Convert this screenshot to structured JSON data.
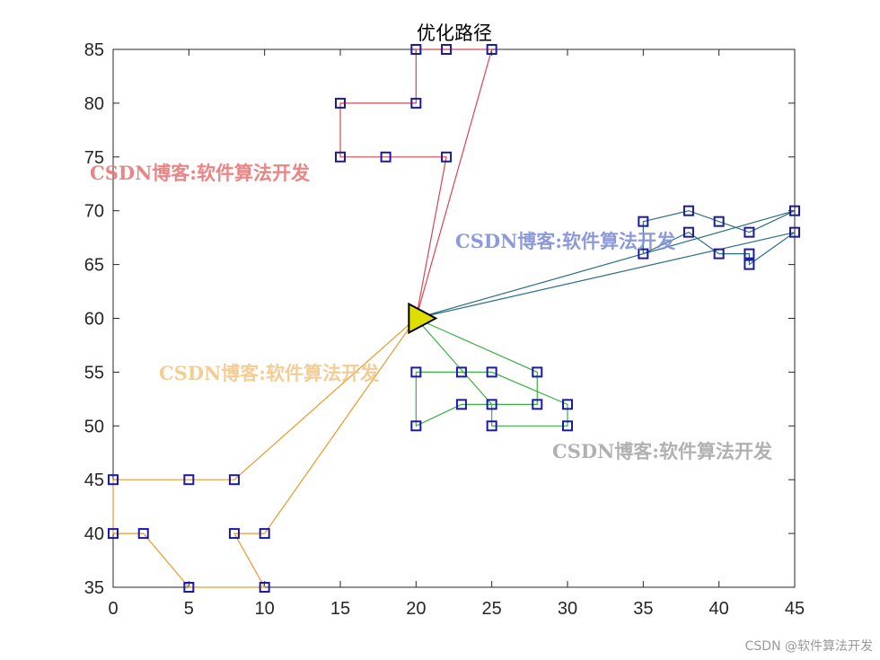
{
  "chart_data": {
    "type": "line",
    "title": "优化路径",
    "xlabel": "",
    "ylabel": "",
    "xlim": [
      0,
      45
    ],
    "ylim": [
      35,
      85
    ],
    "x_ticks": [
      "0",
      "5",
      "10",
      "15",
      "20",
      "25",
      "30",
      "35",
      "40",
      "45"
    ],
    "y_ticks": [
      "35",
      "40",
      "45",
      "50",
      "55",
      "60",
      "65",
      "70",
      "75",
      "80",
      "85"
    ],
    "grid": false,
    "depot": {
      "x": 20,
      "y": 60,
      "color": "#dede00"
    },
    "series": [
      {
        "color": "#d94552",
        "points": [
          [
            20,
            60
          ],
          [
            22,
            75
          ],
          [
            18,
            75
          ],
          [
            15,
            75
          ],
          [
            15,
            80
          ],
          [
            20,
            80
          ],
          [
            20,
            85
          ],
          [
            22,
            85
          ],
          [
            25,
            85
          ],
          [
            20,
            60
          ]
        ]
      },
      {
        "color": "#2a6e86",
        "points": [
          [
            20,
            60
          ],
          [
            45,
            70
          ],
          [
            42,
            68
          ],
          [
            40,
            69
          ],
          [
            38,
            70
          ],
          [
            35,
            69
          ],
          [
            35,
            66
          ],
          [
            38,
            68
          ],
          [
            40,
            66
          ],
          [
            42,
            66
          ],
          [
            42,
            65
          ],
          [
            45,
            68
          ],
          [
            20,
            60
          ]
        ]
      },
      {
        "color": "#3cb043",
        "points": [
          [
            20,
            60
          ],
          [
            28,
            55
          ],
          [
            28,
            52
          ],
          [
            25,
            52
          ],
          [
            23,
            52
          ],
          [
            20,
            50
          ],
          [
            20,
            55
          ],
          [
            23,
            55
          ],
          [
            25,
            55
          ],
          [
            30,
            52
          ],
          [
            30,
            50
          ],
          [
            25,
            50
          ],
          [
            25,
            52
          ],
          [
            20,
            60
          ]
        ]
      },
      {
        "color": "#e89a2e",
        "points": [
          [
            20,
            60
          ],
          [
            8,
            45
          ],
          [
            5,
            45
          ],
          [
            0,
            45
          ],
          [
            0,
            40
          ],
          [
            2,
            40
          ],
          [
            5,
            35
          ],
          [
            10,
            35
          ],
          [
            8,
            40
          ],
          [
            10,
            40
          ],
          [
            20,
            60
          ]
        ]
      }
    ],
    "marker_color": "#1a1aa6"
  },
  "watermarks": [
    {
      "text": "CSDN博客:软件算法开发",
      "color": "#e87878"
    },
    {
      "text": "CSDN博客:软件算法开发",
      "color": "#7f8fd6"
    },
    {
      "text": "CSDN博客:软件算法开发",
      "color": "#f2c88a"
    },
    {
      "text": "CSDN博客:软件算法开发",
      "color": "#a8a8a8"
    }
  ],
  "footer": "CSDN @软件算法开发"
}
